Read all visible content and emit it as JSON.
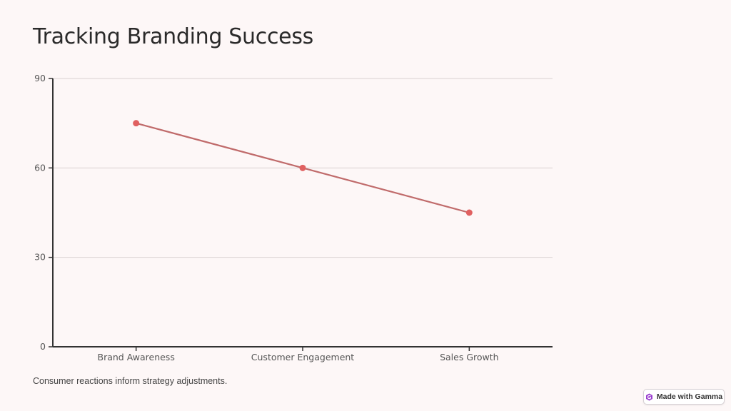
{
  "slide": {
    "title": "Tracking Branding Success",
    "caption": "Consumer reactions inform strategy adjustments."
  },
  "badge": {
    "label": "Made with Gamma",
    "icon": "gamma-logo-icon"
  },
  "colors": {
    "background": "#fdf7f7",
    "line": "#c06b6b",
    "marker": "#e06060",
    "grid": "#d9d2d2",
    "axis": "#333333",
    "tick_text": "#555555",
    "badge_icon": "#9b3fd0"
  },
  "chart_data": {
    "type": "line",
    "title": "",
    "xlabel": "",
    "ylabel": "",
    "categories": [
      "Brand Awareness",
      "Customer Engagement",
      "Sales Growth"
    ],
    "series": [
      {
        "values": [
          75,
          60,
          45
        ]
      }
    ],
    "ylim": [
      0,
      90
    ],
    "yticks": [
      0,
      30,
      60,
      90
    ],
    "grid": true,
    "legend": "none"
  }
}
